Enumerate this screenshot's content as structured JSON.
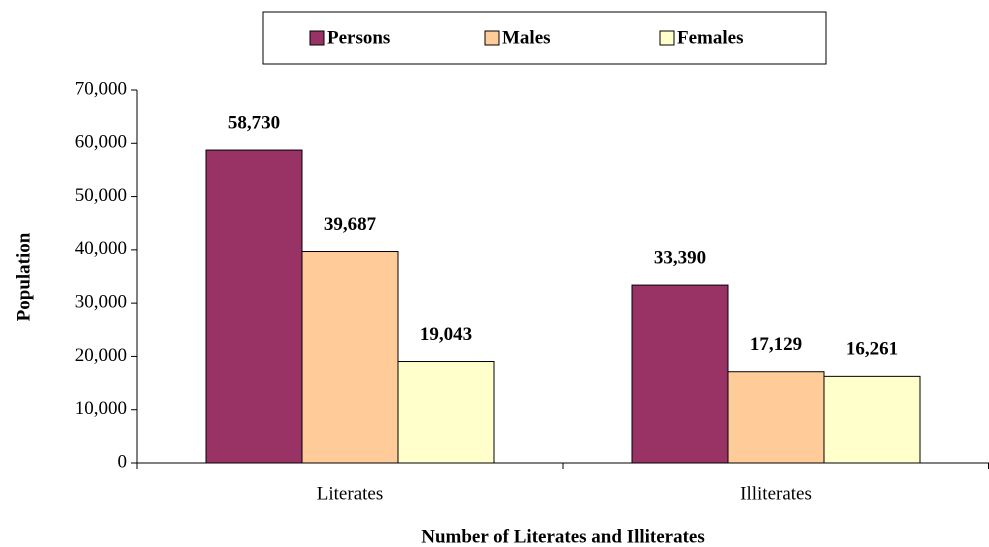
{
  "chart_data": {
    "type": "bar",
    "categories": [
      "Literates",
      "Illiterates"
    ],
    "series": [
      {
        "name": "Persons",
        "color": "#993366",
        "values": [
          58730,
          33390
        ],
        "value_labels": [
          "58,730",
          "33,390"
        ]
      },
      {
        "name": "Males",
        "color": "#FFCC99",
        "values": [
          39687,
          17129
        ],
        "value_labels": [
          "39,687",
          "17,129"
        ]
      },
      {
        "name": "Females",
        "color": "#FFFFCC",
        "values": [
          19043,
          16261
        ],
        "value_labels": [
          "19,043",
          "16,261"
        ]
      }
    ],
    "y_label": "Population",
    "x_label": "Number of Literates and Illiterates",
    "ylim": [
      0,
      70000
    ],
    "yticks": [
      0,
      {
        "value": 10000,
        "label": "10,000"
      },
      {
        "value": 20000,
        "label": "20,000"
      },
      {
        "value": 30000,
        "label": "30,000"
      },
      {
        "value": 40000,
        "label": "40,000"
      },
      {
        "value": 50000,
        "label": "50,000"
      },
      {
        "value": 60000,
        "label": "60,000"
      },
      {
        "value": 70000,
        "label": "70,000"
      }
    ],
    "legend": "top"
  }
}
